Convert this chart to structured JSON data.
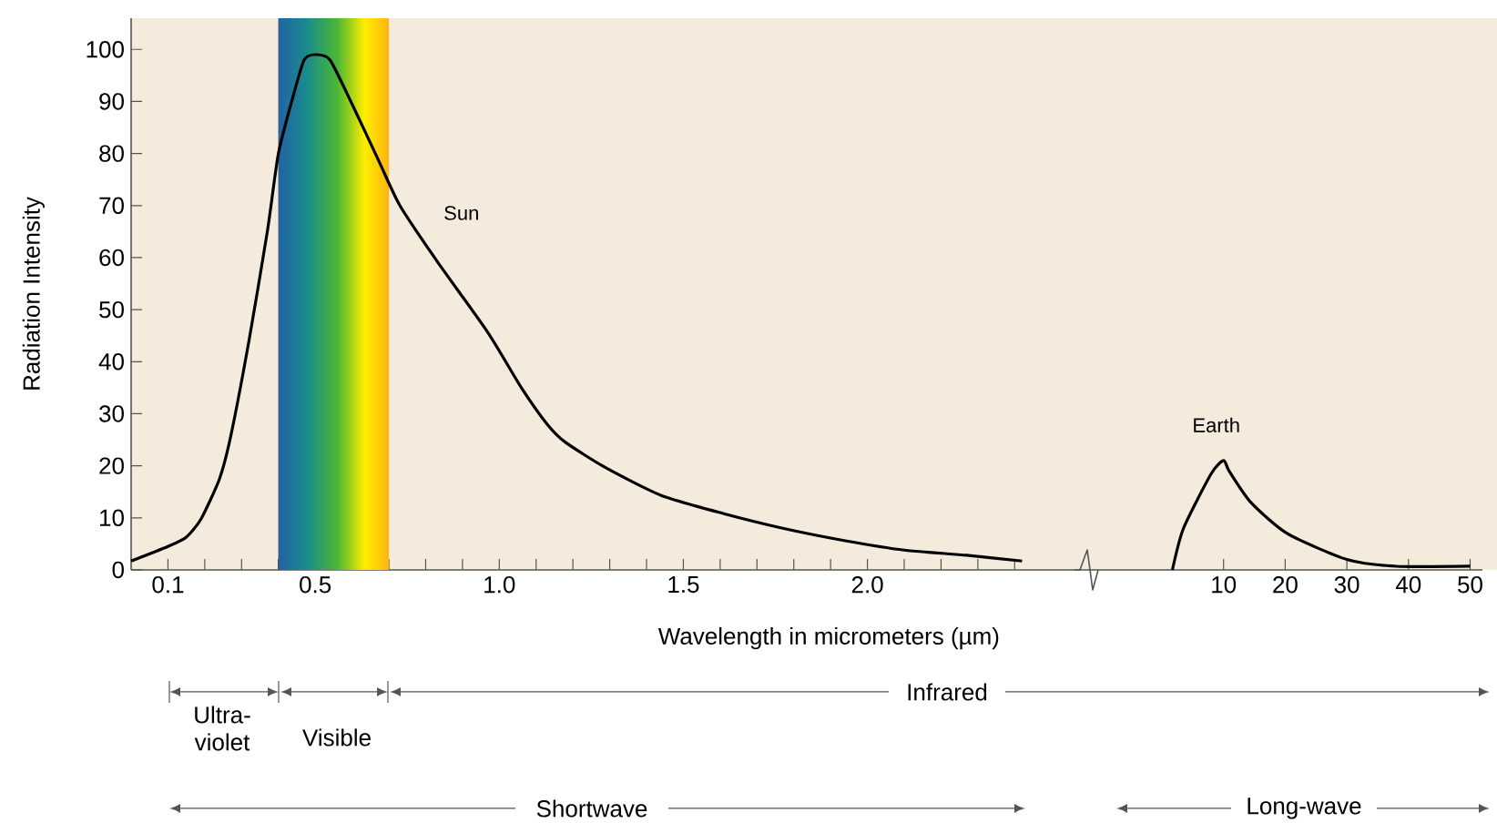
{
  "chart_data": [
    {
      "type": "line",
      "ylabel": "Radiation Intensity",
      "xlabel": "Wavelength in micrometers (µm)",
      "xlim": [
        0,
        2.8
      ],
      "ylim": [
        0,
        106
      ],
      "xticks": [
        0.1,
        {
          "value": 0.2,
          "label": null
        },
        {
          "value": 0.3,
          "label": null
        },
        {
          "value": 0.4,
          "label": null
        },
        0.5,
        {
          "value": 0.6,
          "label": null
        },
        {
          "value": 0.7,
          "label": null
        },
        {
          "value": 0.8,
          "label": null
        },
        {
          "value": 0.9,
          "label": null
        },
        {
          "value": 1,
          "label": "1.0"
        },
        {
          "value": 1.1,
          "label": null
        },
        {
          "value": 1.2,
          "label": null
        },
        {
          "value": 1.3,
          "label": null
        },
        {
          "value": 1.4,
          "label": null
        },
        1.5,
        {
          "value": 1.6,
          "label": null
        },
        {
          "value": 1.7,
          "label": null
        },
        {
          "value": 1.8,
          "label": null
        },
        {
          "value": 1.9,
          "label": null
        },
        {
          "value": 2,
          "label": "2.0"
        },
        {
          "value": 2.1,
          "label": null
        },
        {
          "value": 2.2,
          "label": null
        },
        {
          "value": 2.3,
          "label": null
        },
        {
          "value": 2.4,
          "label": null
        }
      ],
      "yticks": [
        0,
        10,
        20,
        30,
        40,
        50,
        60,
        70,
        80,
        90,
        100
      ],
      "bands": [
        {
          "axis": "x",
          "from": 0.4,
          "to": 0.7
        }
      ],
      "series": [
        {
          "name": "Sun",
          "color": "#000000",
          "x": [
            0.0,
            0.1,
            0.15,
            0.19,
            0.24,
            0.27,
            0.32,
            0.37,
            0.4,
            0.44,
            0.47,
            0.5,
            0.54,
            0.6,
            0.67,
            0.73,
            0.83,
            0.97,
            1.06,
            1.13,
            1.18,
            1.29,
            1.44,
            1.61,
            1.77,
            1.94,
            2.1,
            2.27,
            2.42
          ],
          "values": [
            1.7,
            4.5,
            6.3,
            9.8,
            17.5,
            25.5,
            44,
            65,
            80,
            91,
            98,
            99,
            98,
            89.5,
            79,
            70,
            59.4,
            45.5,
            35,
            28,
            24.5,
            19.6,
            14.3,
            10.8,
            8,
            5.6,
            3.8,
            2.8,
            1.7
          ]
        }
      ],
      "annotations": [
        "Ultra-violet",
        "Visible",
        "Infrared",
        "Shortwave",
        "Long-wave"
      ]
    },
    {
      "type": "line",
      "xlim": [
        0,
        52
      ],
      "ylim": [
        0,
        106
      ],
      "xticks": [
        10,
        20,
        30,
        40,
        50
      ],
      "tick_labels": "x",
      "series": [
        {
          "name": "Earth",
          "color": "#000000",
          "x": [
            1.7,
            3.5,
            8,
            10,
            10.9,
            14.4,
            20.3,
            30,
            38,
            50
          ],
          "values": [
            0,
            8,
            18.5,
            21,
            19,
            13,
            7,
            2,
            0.7,
            0.7
          ]
        }
      ]
    }
  ]
}
